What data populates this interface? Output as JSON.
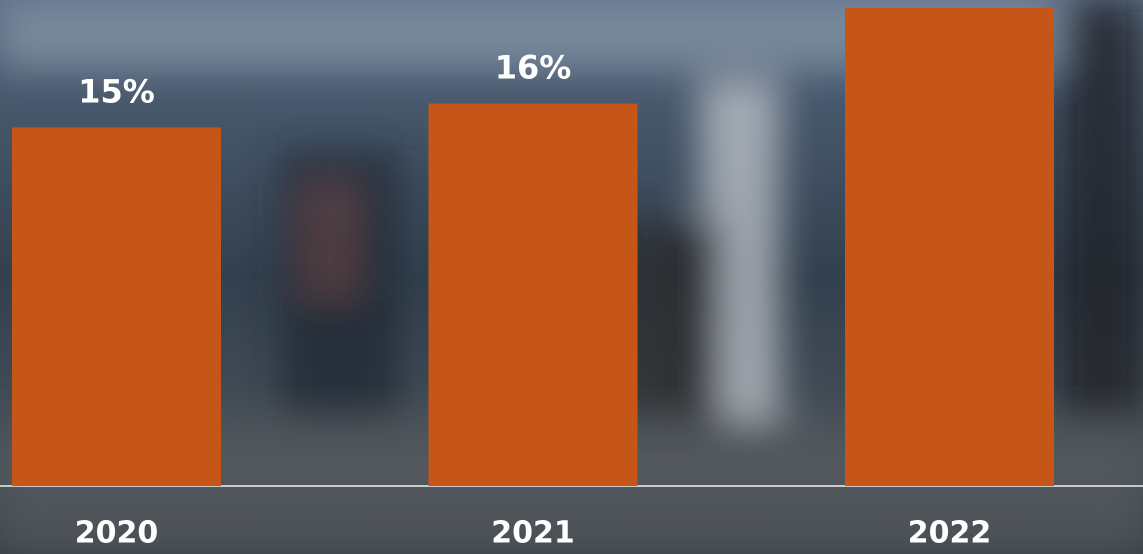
{
  "chart_data": {
    "type": "bar",
    "categories": [
      "2020",
      "2021",
      "2022"
    ],
    "values": [
      15,
      16,
      20
    ],
    "value_labels": [
      "15%",
      "16%",
      null
    ],
    "color": "#c55617",
    "ylim": [
      0,
      20
    ]
  }
}
